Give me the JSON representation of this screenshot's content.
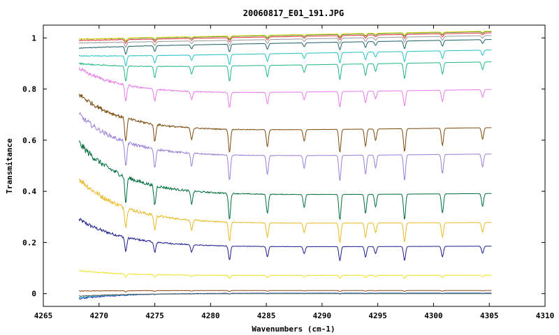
{
  "chart_data": {
    "type": "line",
    "title": "20060817_E01_191.JPG",
    "xlabel": "Wavenumbers (cm-1)",
    "ylabel": "Transmitance",
    "xlim": [
      4265,
      4310
    ],
    "ylim": [
      -0.05,
      1.05
    ],
    "xticks": [
      "4265",
      "4270",
      "4275",
      "4280",
      "4285",
      "4290",
      "4295",
      "4300",
      "4305",
      "4310"
    ],
    "yticks": [
      "0",
      "0.2",
      "0.4",
      "0.6",
      "0.8",
      "1"
    ],
    "grid": false,
    "legend": "none",
    "x_range_of_data": [
      4268.2,
      4305.2
    ],
    "absorption_lines_x": [
      4272.4,
      4275.0,
      4278.3,
      4281.7,
      4285.1,
      4288.4,
      4291.6,
      4293.9,
      4294.8,
      4297.4,
      4300.8,
      4304.4
    ],
    "series": [
      {
        "color": "#1b1b8c",
        "start": 0.29,
        "base": 0.18,
        "line_depth": 0.055
      },
      {
        "color": "#e8b923",
        "start": 0.45,
        "base": 0.27,
        "line_depth": 0.075
      },
      {
        "color": "#006d3c",
        "start": 0.59,
        "base": 0.38,
        "line_depth": 0.1
      },
      {
        "color": "#9b7fd4",
        "start": 0.7,
        "base": 0.53,
        "line_depth": 0.1
      },
      {
        "color": "#7a4a0c",
        "start": 0.78,
        "base": 0.63,
        "line_depth": 0.09
      },
      {
        "color": "#e67ae6",
        "start": 0.88,
        "base": 0.775,
        "line_depth": 0.06
      },
      {
        "color": "#20b58a",
        "start": 0.9,
        "base": 0.88,
        "line_depth": 0.06
      },
      {
        "color": "#20c0c0",
        "start": 0.93,
        "base": 0.925,
        "line_depth": 0.04
      },
      {
        "color": "#1f5f66",
        "start": 0.96,
        "base": 0.965,
        "line_depth": 0.03
      },
      {
        "color": "#999999",
        "start": 0.98,
        "base": 0.98,
        "line_depth": 0.02
      },
      {
        "color": "#e83030",
        "start": 0.99,
        "base": 0.99,
        "line_depth": 0.015
      },
      {
        "color": "#2a7a2a",
        "start": 0.995,
        "base": 0.995,
        "line_depth": 0.012
      },
      {
        "color": "#f0e020",
        "start": 0.995,
        "base": 0.997,
        "line_depth": 0.01
      },
      {
        "color": "#f0e020",
        "start": 0.09,
        "base": 0.07,
        "line_depth": 0.012
      },
      {
        "color": "#8b4513",
        "start": 0.01,
        "base": 0.012,
        "line_depth": 0.004
      },
      {
        "color": "#2020c0",
        "start": -0.02,
        "base": 0.002,
        "line_depth": 0.002
      },
      {
        "color": "#20b0b0",
        "start": -0.015,
        "base": 0.001,
        "line_depth": 0.002
      },
      {
        "color": "#5a5a5a",
        "start": -0.01,
        "base": 0.0,
        "line_depth": 0.001
      }
    ]
  }
}
